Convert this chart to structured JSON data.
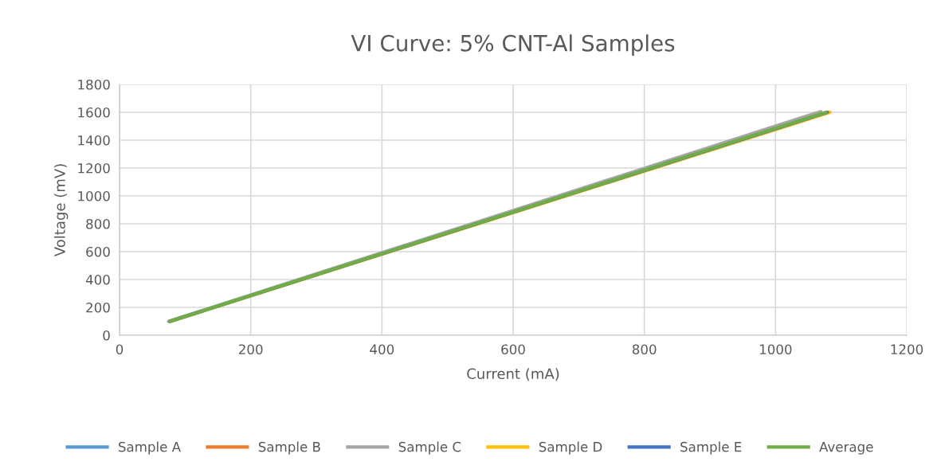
{
  "chart_data": {
    "type": "line",
    "title": "VI Curve: 5% CNT-Al Samples",
    "xlabel": "Current (mA)",
    "ylabel": "Voltage (mV)",
    "xlim": [
      0,
      1200
    ],
    "xticks": [
      0,
      200,
      400,
      600,
      800,
      1000,
      1200
    ],
    "ylim": [
      0,
      1800
    ],
    "yticks": [
      0,
      200,
      400,
      600,
      800,
      1000,
      1200,
      1400,
      1600,
      1800
    ],
    "grid": true,
    "legend": "bottom",
    "marker": "none",
    "line_style": "solid",
    "series": [
      {
        "name": "Sample A",
        "color": "#5b9bd5",
        "values": [
          null,
          null
        ]
      },
      {
        "name": "Sample B",
        "color": "#ed7d31",
        "values": [
          null,
          null
        ]
      },
      {
        "name": "Sample C",
        "color": "#a5a5a5",
        "x": [
          75,
          1069
        ],
        "values": [
          100,
          1605
        ]
      },
      {
        "name": "Sample D",
        "color": "#ffc000",
        "x": [
          78,
          1083
        ],
        "values": [
          100,
          1600
        ]
      },
      {
        "name": "Sample E",
        "color": "#4472c4",
        "x": [
          77,
          1079
        ],
        "values": [
          100,
          1600
        ]
      },
      {
        "name": "Average",
        "color": "#70ad47",
        "x": [
          77,
          1077
        ],
        "values": [
          100,
          1600
        ]
      }
    ]
  }
}
